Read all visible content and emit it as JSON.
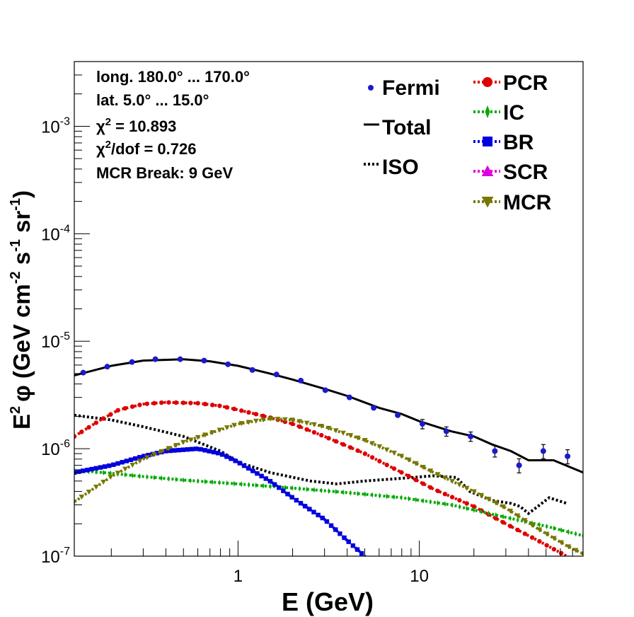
{
  "chart_data": {
    "type": "line",
    "xscale": "log",
    "yscale": "log",
    "xlim": [
      0.125,
      80
    ],
    "ylim": [
      1e-07,
      0.004
    ],
    "xlabel": "E (GeV)",
    "ylabel_parts": {
      "e": "E",
      "e_exp": "2",
      "phi": "φ (GeV cm",
      "cm_exp": "-2",
      "s": " s",
      "s_exp": "-1",
      "sr": " sr",
      "sr_exp": "-1",
      "close": ")"
    },
    "x_ticks": [
      {
        "v": 1,
        "label": "1"
      },
      {
        "v": 10,
        "label": "10"
      }
    ],
    "y_ticks": [
      {
        "v": 1e-07,
        "base": "10",
        "exp": "-7"
      },
      {
        "v": 1e-06,
        "base": "10",
        "exp": "-6"
      },
      {
        "v": 1e-05,
        "base": "10",
        "exp": "-5"
      },
      {
        "v": 0.0001,
        "base": "10",
        "exp": "-4"
      },
      {
        "v": 0.001,
        "base": "10",
        "exp": "-3"
      }
    ],
    "info": {
      "longitude": "long. 180.0° ... 170.0°",
      "latitude": "lat. 5.0° ... 15.0°",
      "chi2_sym": "χ",
      "chi2_exp": "2",
      "chi2_val": " = 10.893",
      "chi2dof_val": "/dof = 0.726",
      "break": "MCR Break:  9 GeV"
    },
    "legend_left": [
      {
        "name": "Fermi",
        "color": "#0000cc",
        "marker": "dot"
      },
      {
        "name": "Total",
        "color": "#000000",
        "marker": "solid"
      },
      {
        "name": "ISO",
        "color": "#000000",
        "marker": "dotted"
      }
    ],
    "legend_right": [
      {
        "name": "PCR",
        "color": "#dd0000",
        "marker": "circle"
      },
      {
        "name": "IC",
        "color": "#00aa00",
        "marker": "star"
      },
      {
        "name": "BR",
        "color": "#0000dd",
        "marker": "square"
      },
      {
        "name": "SCR",
        "color": "#dd00dd",
        "marker": "triangle-up"
      },
      {
        "name": "MCR",
        "color": "#777700",
        "marker": "triangle-down"
      }
    ],
    "fermi": {
      "color": "#1a1acc",
      "points": [
        [
          0.14,
          5.1e-06
        ],
        [
          0.19,
          5.8e-06
        ],
        [
          0.26,
          6.4e-06
        ],
        [
          0.35,
          6.8e-06
        ],
        [
          0.48,
          6.8e-06
        ],
        [
          0.65,
          6.6e-06
        ],
        [
          0.88,
          6.1e-06
        ],
        [
          1.2,
          5.4e-06
        ],
        [
          1.63,
          4.9e-06
        ],
        [
          2.22,
          4.3e-06
        ],
        [
          3.03,
          3.5e-06
        ],
        [
          4.12,
          3e-06
        ],
        [
          5.6,
          2.4e-06
        ],
        [
          7.6,
          2.05e-06
        ],
        [
          10.4,
          1.7e-06
        ],
        [
          14.1,
          1.45e-06
        ],
        [
          19.2,
          1.3e-06
        ],
        [
          26.1,
          9.5e-07
        ],
        [
          35.5,
          7e-07
        ],
        [
          48.3,
          9.5e-07
        ],
        [
          65.7,
          8.5e-07
        ]
      ],
      "errors": [
        [
          0.14,
          0.0
        ],
        [
          0.19,
          0.0
        ],
        [
          0.26,
          0.0
        ],
        [
          0.35,
          0.0
        ],
        [
          0.48,
          0.0
        ],
        [
          0.65,
          0.0
        ],
        [
          0.88,
          0.0
        ],
        [
          1.2,
          0.0
        ],
        [
          1.63,
          0.0
        ],
        [
          2.22,
          0.0
        ],
        [
          3.03,
          0.0
        ],
        [
          4.12,
          0.0
        ],
        [
          5.6,
          0.0
        ],
        [
          7.6,
          0.0
        ],
        [
          10.4,
          0.1
        ],
        [
          14.1,
          0.1
        ],
        [
          19.2,
          0.1
        ],
        [
          26.1,
          0.12
        ],
        [
          35.5,
          0.15
        ],
        [
          48.3,
          0.15
        ],
        [
          65.7,
          0.15
        ]
      ]
    },
    "series": [
      {
        "name": "Total",
        "color": "#000000",
        "style": "solid",
        "points": [
          [
            0.125,
            4.8e-06
          ],
          [
            0.2,
            5.9e-06
          ],
          [
            0.3,
            6.6e-06
          ],
          [
            0.5,
            6.8e-06
          ],
          [
            0.7,
            6.5e-06
          ],
          [
            1.0,
            5.9e-06
          ],
          [
            1.5,
            5e-06
          ],
          [
            2.0,
            4.4e-06
          ],
          [
            3.0,
            3.6e-06
          ],
          [
            4.0,
            3.1e-06
          ],
          [
            6.0,
            2.4e-06
          ],
          [
            8.0,
            2.1e-06
          ],
          [
            10.0,
            1.8e-06
          ],
          [
            15.0,
            1.45e-06
          ],
          [
            20.0,
            1.3e-06
          ],
          [
            25.0,
            1.1e-06
          ],
          [
            32.0,
            9.5e-07
          ],
          [
            40.0,
            7.8e-07
          ],
          [
            55.0,
            7.8e-07
          ],
          [
            80.0,
            6e-07
          ]
        ]
      },
      {
        "name": "ISO",
        "color": "#000000",
        "style": "dotted",
        "points": [
          [
            0.125,
            2.05e-06
          ],
          [
            0.2,
            1.85e-06
          ],
          [
            0.3,
            1.6e-06
          ],
          [
            0.5,
            1.3e-06
          ],
          [
            0.8,
            9.5e-07
          ],
          [
            1.0,
            7.5e-07
          ],
          [
            1.5,
            6e-07
          ],
          [
            2.5,
            5e-07
          ],
          [
            3.5,
            4.7e-07
          ],
          [
            5.0,
            5e-07
          ],
          [
            8.0,
            5.3e-07
          ],
          [
            12.0,
            5.6e-07
          ],
          [
            16.0,
            5.4e-07
          ],
          [
            19.0,
            4e-07
          ],
          [
            25.0,
            3.3e-07
          ],
          [
            32.0,
            3.1e-07
          ],
          [
            36.0,
            2.9e-07
          ],
          [
            40.0,
            2.5e-07
          ],
          [
            45.0,
            2.9e-07
          ],
          [
            52.0,
            3.5e-07
          ],
          [
            65.0,
            3.1e-07
          ]
        ]
      },
      {
        "name": "PCR",
        "color": "#dd0000",
        "style": "dotted",
        "marker": "circle",
        "points": [
          [
            0.125,
            1.3e-06
          ],
          [
            0.17,
            1.8e-06
          ],
          [
            0.22,
            2.3e-06
          ],
          [
            0.3,
            2.6e-06
          ],
          [
            0.4,
            2.7e-06
          ],
          [
            0.6,
            2.65e-06
          ],
          [
            0.8,
            2.5e-06
          ],
          [
            1.0,
            2.3e-06
          ],
          [
            1.5,
            1.95e-06
          ],
          [
            2.0,
            1.7e-06
          ],
          [
            3.0,
            1.3e-06
          ],
          [
            5.0,
            9e-07
          ],
          [
            8.0,
            6e-07
          ],
          [
            12.0,
            4.2e-07
          ],
          [
            20.0,
            2.9e-07
          ],
          [
            30.0,
            2e-07
          ],
          [
            45.0,
            1.4e-07
          ],
          [
            65.0,
            1e-07
          ],
          [
            80.0,
            8.5e-08
          ]
        ]
      },
      {
        "name": "IC",
        "color": "#00aa00",
        "style": "dotted",
        "marker": "star",
        "points": [
          [
            0.125,
            6.3e-07
          ],
          [
            0.2,
            5.9e-07
          ],
          [
            0.3,
            5.5e-07
          ],
          [
            0.5,
            5.1e-07
          ],
          [
            1.0,
            4.7e-07
          ],
          [
            2.0,
            4.3e-07
          ],
          [
            4.0,
            3.9e-07
          ],
          [
            8.0,
            3.5e-07
          ],
          [
            15.0,
            3e-07
          ],
          [
            30.0,
            2.3e-07
          ],
          [
            50.0,
            1.9e-07
          ],
          [
            80.0,
            1.55e-07
          ]
        ]
      },
      {
        "name": "BR",
        "color": "#0000dd",
        "style": "dotted",
        "marker": "square",
        "points": [
          [
            0.125,
            6e-07
          ],
          [
            0.2,
            7e-07
          ],
          [
            0.3,
            8.5e-07
          ],
          [
            0.4,
            9.5e-07
          ],
          [
            0.6,
            1e-06
          ],
          [
            0.8,
            9e-07
          ],
          [
            1.0,
            7.5e-07
          ],
          [
            1.5,
            5e-07
          ],
          [
            2.0,
            3.5e-07
          ],
          [
            3.0,
            2.2e-07
          ],
          [
            4.0,
            1.4e-07
          ],
          [
            5.0,
            1e-07
          ],
          [
            6.0,
            7.5e-08
          ]
        ]
      },
      {
        "name": "MCR",
        "color": "#777700",
        "style": "dotted",
        "marker": "triangle-down",
        "points": [
          [
            0.125,
            3.2e-07
          ],
          [
            0.2,
            5.5e-07
          ],
          [
            0.3,
            8e-07
          ],
          [
            0.5,
            1.15e-06
          ],
          [
            0.8,
            1.5e-06
          ],
          [
            1.0,
            1.7e-06
          ],
          [
            1.5,
            1.9e-06
          ],
          [
            2.0,
            1.85e-06
          ],
          [
            3.0,
            1.6e-06
          ],
          [
            5.0,
            1.2e-06
          ],
          [
            8.0,
            8.5e-07
          ],
          [
            12.0,
            6e-07
          ],
          [
            20.0,
            4e-07
          ],
          [
            30.0,
            2.8e-07
          ],
          [
            45.0,
            1.8e-07
          ],
          [
            65.0,
            1.25e-07
          ],
          [
            80.0,
            1.05e-07
          ]
        ]
      }
    ]
  }
}
